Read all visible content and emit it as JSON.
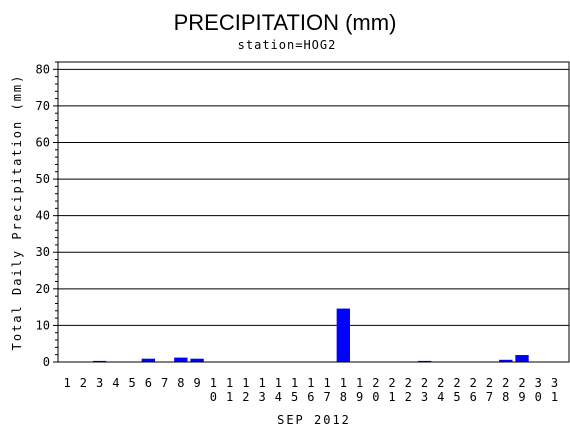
{
  "chart_data": {
    "type": "bar",
    "title": "PRECIPITATION (mm)",
    "subtitle": "station=HOG2",
    "xlabel": "SEP 2012",
    "ylabel": "Total Daily Precipitation (mm)",
    "ylim": [
      0,
      82
    ],
    "yticks": [
      "0",
      "10",
      "20",
      "30",
      "40",
      "50",
      "60",
      "70",
      "80"
    ],
    "grid": true,
    "bar_color": "#0000ff",
    "categories": [
      "1",
      "2",
      "3",
      "4",
      "5",
      "6",
      "7",
      "8",
      "9",
      "10",
      "11",
      "12",
      "13",
      "14",
      "15",
      "16",
      "17",
      "18",
      "19",
      "20",
      "21",
      "22",
      "23",
      "24",
      "25",
      "26",
      "27",
      "28",
      "29",
      "30",
      "31"
    ],
    "values": [
      0,
      0,
      0.3,
      0,
      0,
      0.9,
      0,
      1.2,
      0.9,
      0,
      0,
      0,
      0,
      0,
      0,
      0,
      0,
      14.6,
      0,
      0,
      0,
      0,
      0.3,
      0,
      0,
      0,
      0,
      0.6,
      1.9,
      0,
      0
    ]
  }
}
